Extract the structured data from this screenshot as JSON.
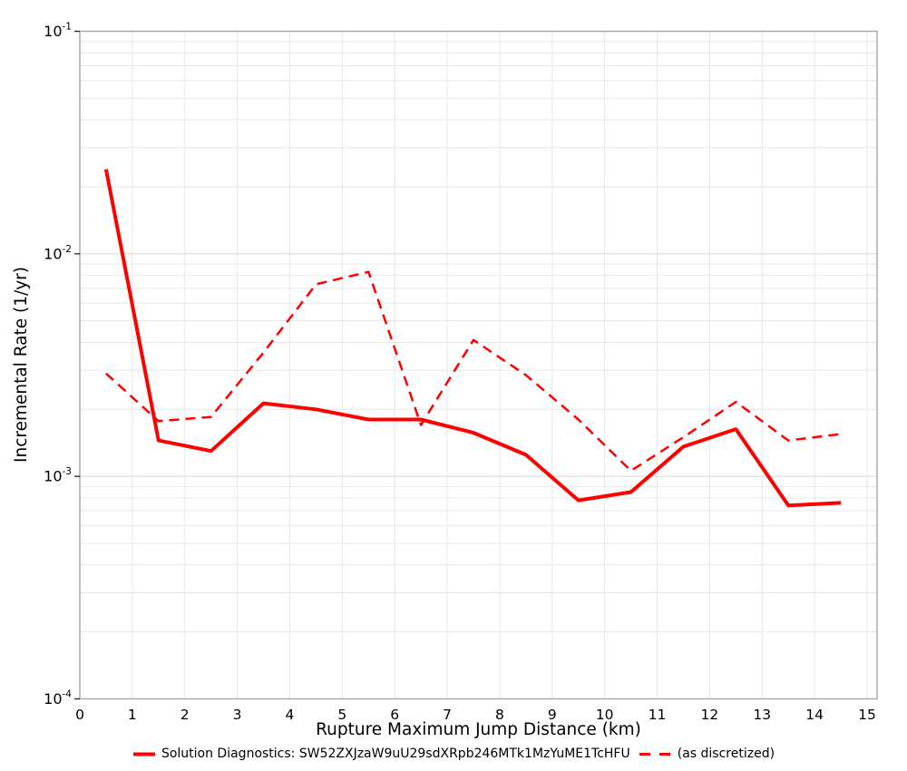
{
  "figure": {
    "xlabel": "Rupture Maximum Jump Distance (km)",
    "ylabel": "Incremental Rate (1/yr)",
    "x_ticks": [
      "0",
      "1",
      "2",
      "3",
      "4",
      "5",
      "6",
      "7",
      "8",
      "9",
      "10",
      "11",
      "12",
      "13",
      "14",
      "15"
    ],
    "y_ticks": [
      {
        "mantissa": "10",
        "exp": "-1"
      },
      {
        "mantissa": "10",
        "exp": "-2"
      },
      {
        "mantissa": "10",
        "exp": "-3"
      },
      {
        "mantissa": "10",
        "exp": "-4"
      }
    ]
  },
  "legend": {
    "solid_label": "Solution Diagnostics: SW52ZXJzaW9uU29sdXRpb246MTk1MzYuME1TcHFU",
    "dashed_label": "(as discretized)"
  },
  "chart_data": {
    "type": "line",
    "title": "",
    "xlabel": "Rupture Maximum Jump Distance (km)",
    "ylabel": "Incremental Rate (1/yr)",
    "yscale": "log",
    "grid": true,
    "legend_position": "bottom",
    "xlim": [
      0,
      15.19
    ],
    "ylim": [
      0.0001,
      0.1
    ],
    "x": [
      0.5,
      1.5,
      2.5,
      3.5,
      4.5,
      5.5,
      6.5,
      7.5,
      8.5,
      9.5,
      10.5,
      11.5,
      12.5,
      13.5,
      14.5
    ],
    "series": [
      {
        "name": "Solution Diagnostics: SW52ZXJzaW9uU29sdXRpb246MTk1MzYuME1TcHFU",
        "style": "solid",
        "width": 4,
        "values": [
          0.024,
          0.00145,
          0.0013,
          0.00213,
          0.002,
          0.0018,
          0.0018,
          0.00157,
          0.00125,
          0.00078,
          0.00085,
          0.00136,
          0.00163,
          0.00074,
          0.00076
        ]
      },
      {
        "name": "(as discretized)",
        "style": "dashed",
        "width": 2.5,
        "values": [
          0.0029,
          0.00177,
          0.00185,
          0.0036,
          0.0073,
          0.0083,
          0.0017,
          0.0041,
          0.00285,
          0.0018,
          0.00106,
          0.0015,
          0.00216,
          0.00145,
          0.00155
        ]
      }
    ]
  },
  "colors": {
    "line": "#ff0000",
    "grid_minor": "#e7e7e7",
    "grid_major": "#dcdcdc",
    "border": "#aaaaaa",
    "tick": "#222222",
    "text": "#000000"
  }
}
